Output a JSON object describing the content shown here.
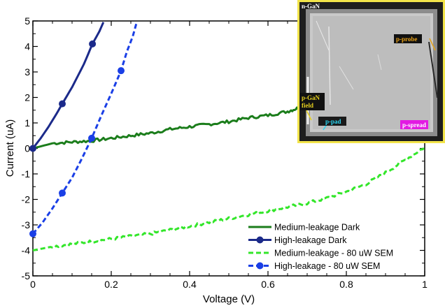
{
  "chart_data": {
    "type": "line",
    "xlabel": "Voltage (V)",
    "ylabel": "Current (uA)",
    "xlim": [
      0,
      1
    ],
    "ylim": [
      -5,
      5
    ],
    "x_ticks": [
      "0",
      "0.2",
      "0.4",
      "0.6",
      "0.8",
      "1"
    ],
    "y_ticks": [
      "-5",
      "-4",
      "-3",
      "-2",
      "-1",
      "0",
      "1",
      "2",
      "3",
      "4",
      "5"
    ],
    "grid": false,
    "legend_position": "bottom-right",
    "series": [
      {
        "name": "Medium-leakage Dark",
        "color": "#1b7d1b",
        "style": "solid",
        "marker": "none",
        "points": [
          [
            0,
            0.0
          ],
          [
            0.05,
            0.2
          ],
          [
            0.1,
            0.25
          ],
          [
            0.15,
            0.3
          ],
          [
            0.2,
            0.4
          ],
          [
            0.25,
            0.5
          ],
          [
            0.3,
            0.6
          ],
          [
            0.35,
            0.75
          ],
          [
            0.4,
            0.85
          ],
          [
            0.45,
            0.95
          ],
          [
            0.5,
            1.05
          ],
          [
            0.55,
            1.2
          ],
          [
            0.6,
            1.3
          ],
          [
            0.65,
            1.45
          ],
          [
            0.68,
            1.6
          ]
        ]
      },
      {
        "name": "High-leakage Dark",
        "color": "#1b2a8a",
        "style": "solid",
        "marker": "circle",
        "points": [
          [
            0,
            0.0
          ],
          [
            0.02,
            0.4
          ],
          [
            0.04,
            0.85
          ],
          [
            0.06,
            1.35
          ],
          [
            0.075,
            1.75
          ],
          [
            0.1,
            2.4
          ],
          [
            0.13,
            3.3
          ],
          [
            0.152,
            4.1
          ],
          [
            0.17,
            4.6
          ],
          [
            0.18,
            4.95
          ]
        ],
        "markers_at": [
          [
            0,
            0.0
          ],
          [
            0.075,
            1.75
          ],
          [
            0.152,
            4.1
          ]
        ]
      },
      {
        "name": "Medium-leakage - 80 uW SEM",
        "color": "#33e62a",
        "style": "dashed",
        "marker": "none",
        "points": [
          [
            0,
            -4.0
          ],
          [
            0.05,
            -3.85
          ],
          [
            0.1,
            -3.75
          ],
          [
            0.15,
            -3.65
          ],
          [
            0.2,
            -3.55
          ],
          [
            0.25,
            -3.45
          ],
          [
            0.3,
            -3.35
          ],
          [
            0.35,
            -3.2
          ],
          [
            0.4,
            -3.05
          ],
          [
            0.45,
            -2.9
          ],
          [
            0.5,
            -2.75
          ],
          [
            0.55,
            -2.6
          ],
          [
            0.6,
            -2.45
          ],
          [
            0.65,
            -2.3
          ],
          [
            0.7,
            -2.15
          ],
          [
            0.75,
            -1.95
          ],
          [
            0.8,
            -1.7
          ],
          [
            0.85,
            -1.4
          ],
          [
            0.9,
            -0.95
          ],
          [
            0.95,
            -0.45
          ],
          [
            1.0,
            0.05
          ]
        ]
      },
      {
        "name": "High-leakage - 80 uW SEM",
        "color": "#1a3fe6",
        "style": "dashed",
        "marker": "circle",
        "points": [
          [
            0,
            -3.35
          ],
          [
            0.025,
            -2.9
          ],
          [
            0.05,
            -2.35
          ],
          [
            0.075,
            -1.75
          ],
          [
            0.1,
            -1.15
          ],
          [
            0.125,
            -0.4
          ],
          [
            0.15,
            0.4
          ],
          [
            0.175,
            1.3
          ],
          [
            0.2,
            2.15
          ],
          [
            0.225,
            3.05
          ],
          [
            0.24,
            3.8
          ],
          [
            0.255,
            4.4
          ],
          [
            0.265,
            4.95
          ]
        ],
        "markers_at": [
          [
            0,
            -3.35
          ],
          [
            0.075,
            -1.75
          ],
          [
            0.15,
            0.4
          ],
          [
            0.225,
            3.05
          ]
        ]
      }
    ],
    "inset_labels": {
      "n_gan": "n-GaN",
      "p_probe": "p-probe",
      "p_gan_field": "p-GaN field",
      "p_pad": "p-pad",
      "p_spread": "p-spread"
    }
  }
}
